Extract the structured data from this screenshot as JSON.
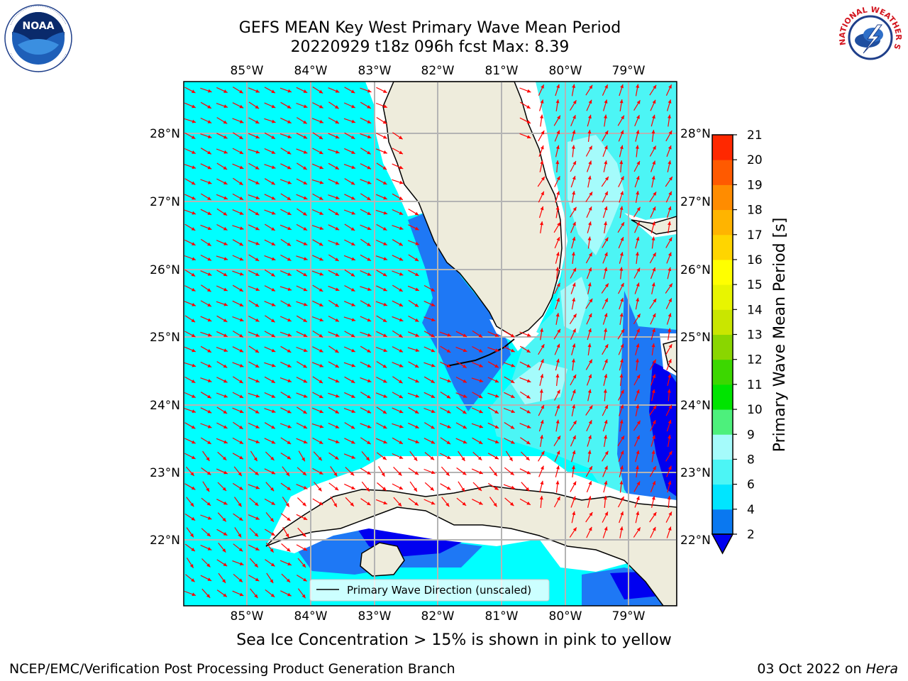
{
  "title": {
    "line1": "GEFS MEAN Key West Primary Wave Mean Period",
    "line2": "20220929 t18z 096h fcst   Max: 8.39"
  },
  "logos": {
    "noaa": {
      "text": "NOAA",
      "icon": "noaa-logo"
    },
    "nws": {
      "text": "NATIONAL WEATHER SERVICE",
      "icon": "nws-logo"
    }
  },
  "map": {
    "lon_labels": [
      "85°W",
      "84°W",
      "83°W",
      "82°W",
      "81°W",
      "80°W",
      "79°W"
    ],
    "lat_labels": [
      "28°N",
      "27°N",
      "26°N",
      "25°N",
      "24°N",
      "23°N",
      "22°N"
    ],
    "colors": {
      "ocean_4_6": "#00ffff",
      "ocean_6_8": "#4cf5f5",
      "ocean_8_9": "#a5fbfb",
      "ocean_2_4": "#1e78f5",
      "ocean_lt2": "#0000f0",
      "land": "#eeecdc",
      "arrow": "#ff0000",
      "grid": "#b4b4b4"
    },
    "legend_label": "Primary Wave Direction (unscaled)"
  },
  "colorbar": {
    "label": "Primary Wave Mean Period [s]",
    "ticks": [
      "2",
      "4",
      "6",
      "8",
      "9",
      "10",
      "11",
      "12",
      "13",
      "14",
      "15",
      "16",
      "17",
      "18",
      "19",
      "20",
      "21"
    ],
    "colors": [
      "#0a78f0",
      "#00e5ff",
      "#4cf5f5",
      "#a5fbfb",
      "#4df07c",
      "#00e400",
      "#3cd700",
      "#8ad600",
      "#c9e600",
      "#e8f500",
      "#ffff00",
      "#ffd500",
      "#ffb400",
      "#ff8c00",
      "#ff5a00",
      "#ff2800",
      "#ff0000"
    ]
  },
  "footer": {
    "sea_ice_note": "Sea Ice Concentration > 15% is shown in pink to yellow",
    "credit": "NCEP/EMC/Verification Post Processing Product Generation Branch",
    "date": "03 Oct 2022 on ",
    "host": "Hera"
  }
}
